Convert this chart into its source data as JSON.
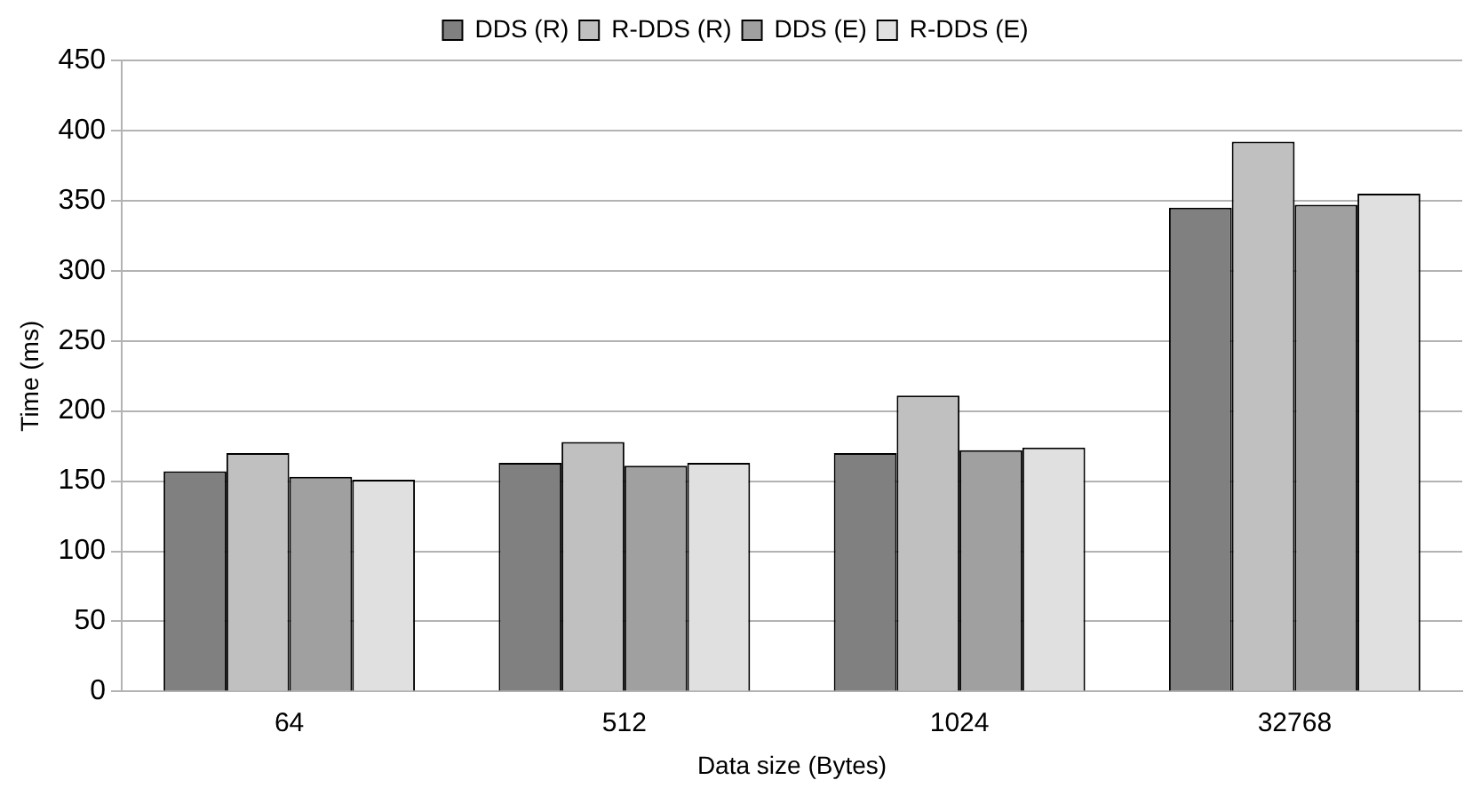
{
  "chart_data": {
    "type": "bar",
    "xlabel": "Data size (Bytes)",
    "ylabel": "Time (ms)",
    "categories": [
      "64",
      "512",
      "1024",
      "32768"
    ],
    "series": [
      {
        "name": "DDS (R)",
        "color": "#808080",
        "values": [
          157,
          163,
          170,
          345
        ]
      },
      {
        "name": "R-DDS (R)",
        "color": "#c0c0c0",
        "values": [
          170,
          178,
          211,
          392
        ]
      },
      {
        "name": "DDS (E)",
        "color": "#a0a0a0",
        "values": [
          153,
          161,
          172,
          347
        ]
      },
      {
        "name": "R-DDS (E)",
        "color": "#e0e0e0",
        "values": [
          151,
          163,
          174,
          355
        ]
      }
    ],
    "ylim": [
      0,
      450
    ],
    "yticks": [
      0,
      50,
      100,
      150,
      200,
      250,
      300,
      350,
      400,
      450
    ],
    "grid": "y",
    "legend": "top"
  }
}
